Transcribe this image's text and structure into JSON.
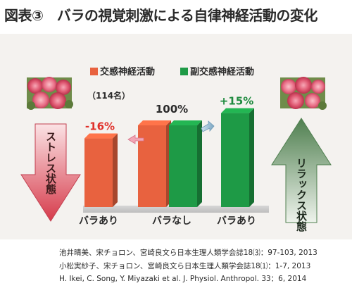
{
  "header": {
    "title": "図表③　バラの視覚刺激による自律神経活動の変化"
  },
  "colors": {
    "sympathetic": "#e8623f",
    "parasympathetic": "#1e9a46",
    "stress_arrow": "#e0515c",
    "relax_arrow": "#5a8a5c",
    "panel_bg": "#f4f2ef"
  },
  "chart_data": {
    "type": "bar",
    "categories": [
      "バラあり",
      "バラなし",
      "バラあり"
    ],
    "series": [
      {
        "name": "交感神経活動",
        "values": [
          84,
          100,
          null
        ]
      },
      {
        "name": "副交感神経活動",
        "values": [
          null,
          100,
          115
        ]
      }
    ],
    "baseline_label": "100%",
    "sample_label": "（114名）",
    "annotations": {
      "left_change": "-16%",
      "right_change": "+15%"
    },
    "side_labels": {
      "left": "ストレス状態",
      "right": "リラックス状態"
    },
    "legend_position": "top",
    "grid": false
  },
  "icons": {
    "left_image": "rose-bouquet-photo",
    "right_image": "rose-bouquet-photo",
    "left_arrow": "down-arrow",
    "right_arrow": "up-arrow"
  },
  "references": [
    "池井晴美、宋チョロン、宮崎良文ら日本生理人類学会誌18⑶：97-103, 2013",
    "小松実紗子、宋チョロン、宮崎良文ら日本生理人類学会誌18⑴：1-7, 2013",
    "H. Ikei, C. Song, Y. Miyazaki et al. J. Physiol. Anthropol. 33：6, 2014"
  ]
}
